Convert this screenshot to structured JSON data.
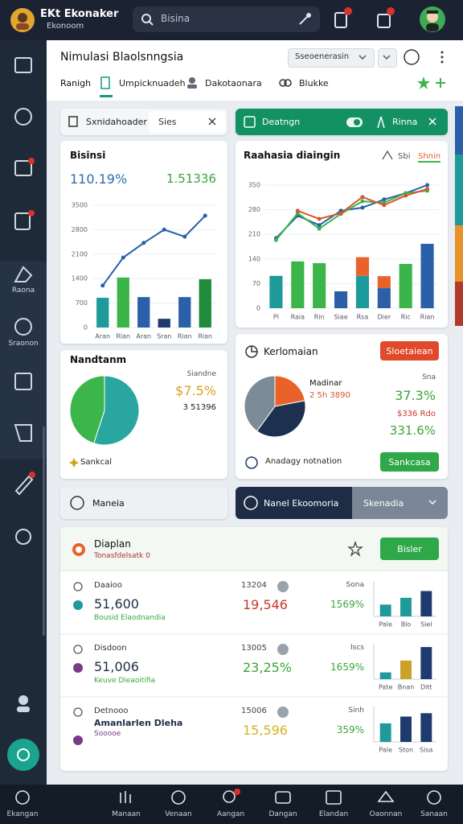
{
  "top_bar": {
    "app_title": "EKt Ekonaker",
    "app_subtitle": "Ekonoom",
    "search": "Bisina"
  },
  "sidebar": {
    "items": [
      "Raona",
      "Sraonon"
    ]
  },
  "header": {
    "title": "Nimulasi Blaolsnngsia",
    "dropdown": "Sseoenerasin",
    "tabs": [
      "Ranigh",
      "Umpicknuadeh",
      "Dakotaonara",
      "Blukke"
    ]
  },
  "filter_bar": {
    "label": "Sxnidahoader",
    "input": "Sies",
    "action": "Deatngn",
    "action_right": "Rinna"
  },
  "chart_left": {
    "type": "bar",
    "title": "Bisinsi",
    "kpi": "110.19%",
    "kpi_secondary": "1.51336",
    "categories": [
      "Aran",
      "Rlan",
      "Aran",
      "Sran",
      "Rian",
      "Rlan"
    ],
    "values": [
      850,
      1430,
      870,
      250,
      870,
      1380
    ],
    "colors": [
      "#1f9a9a",
      "#3bb54a",
      "#2b5fa8",
      "#1e3a6e",
      "#2b5fa8",
      "#1e8c3a"
    ],
    "lines": [
      {
        "color": "#2b5fa8",
        "values": [
          1200,
          2000,
          2420,
          2800,
          2600,
          3200
        ]
      }
    ],
    "ylim": [
      0,
      3500
    ],
    "yticks": [
      0,
      700,
      1400,
      2100,
      2800,
      3500
    ]
  },
  "chart_right": {
    "type": "bar",
    "title": "Raahasia diaingin",
    "legend": [
      "Sbi",
      "Shnin"
    ],
    "categories": [
      "Pl",
      "Raia",
      "Rin",
      "Siae",
      "Rsa",
      "Dier",
      "Ric",
      "Rian"
    ],
    "values": [
      92,
      133,
      128,
      48,
      92,
      57,
      126,
      183
    ],
    "colors": [
      "#1f9a9a",
      "#3bb54a",
      "#3bb54a",
      "#2b5fa8",
      "#1f9a9a",
      "#2b5fa8",
      "#3bb54a",
      "#2b5fa8"
    ],
    "top_values": [
      null,
      null,
      null,
      null,
      53,
      34,
      null,
      null
    ],
    "top_color": "#e8622a",
    "lines": [
      {
        "color": "#2b5fa8",
        "values": [
          199,
          263,
          236,
          277,
          286,
          309,
          327,
          350
        ]
      },
      {
        "color": "#3bb54a",
        "values": [
          194,
          270,
          226,
          268,
          304,
          300,
          327,
          334
        ]
      },
      {
        "color": "#d9552b",
        "values": [
          null,
          277,
          254,
          270,
          316,
          293,
          320,
          339
        ]
      }
    ],
    "ylim": [
      0,
      350
    ],
    "yticks": [
      0,
      70,
      140,
      210,
      280,
      350
    ]
  },
  "pie_left": {
    "type": "pie",
    "title": "Nandtanm",
    "label": "Siandne",
    "value_text": "$7.5%",
    "secondary": "3 51396",
    "footer": "Sankcal",
    "values": [
      55,
      45
    ],
    "colors": [
      "#2aa6a0",
      "#3cb54a"
    ]
  },
  "pie_right": {
    "type": "pie",
    "title": "Kerlomaian",
    "button": "Sloetaiean",
    "center_label": "Madinar",
    "center_value": "2 5h 3890",
    "side_label": "Sna",
    "side_value": "37.3%",
    "side_note": "$336 Rdo",
    "side_value_2": "331.6%",
    "footer": "Anadagy notnation",
    "footer_button": "Sankcasa",
    "values": [
      22,
      38,
      40
    ],
    "colors": [
      "#e8622a",
      "#1e3050",
      "#7d8b96"
    ]
  },
  "tab_row": {
    "left": "Maneia",
    "active": "Nanel Ekoomoria",
    "right": "Skenadia"
  },
  "list": {
    "title": "Diaplan",
    "subtitle": "Tonasfdelsatk 0",
    "button": "Bisler",
    "rows": [
      {
        "name": "Daaioo",
        "amount": "51,600",
        "note": "Bousid Elaodnandia",
        "mid_label": "13204",
        "mid_value": "19,546",
        "mid_color": "#c8362c",
        "right_label": "Sona",
        "right_value": "1569%",
        "chart": {
          "categories": [
            "Pale",
            "Blo",
            "Siel"
          ],
          "values": [
            35,
            55,
            75
          ],
          "colors": [
            "#1f9a9a",
            "#1f9a9a",
            "#1e3a6e"
          ],
          "ylim": [
            0,
            100
          ]
        }
      },
      {
        "name": "Disdoon",
        "amount": "51,006",
        "note": "Keuve Dieaoitifia",
        "mid_label": "13005",
        "mid_value": "23,25%",
        "mid_color": "#3aa53a",
        "right_label": "Iscs",
        "right_value": "1659%",
        "chart": {
          "categories": [
            "Pate",
            "Bnan",
            "Ditt"
          ],
          "values": [
            20,
            55,
            95
          ],
          "colors": [
            "#1f9a9a",
            "#c9a227",
            "#1e3a6e"
          ],
          "ylim": [
            0,
            100
          ]
        }
      },
      {
        "name": "Detnooo",
        "amount": "Amanlarlen Dleha",
        "note": "Sooooe",
        "mid_label": "15006",
        "mid_value": "15,596",
        "mid_color": "#d8b21e",
        "right_label": "Sinh",
        "right_value": "359%",
        "chart": {
          "categories": [
            "Pale",
            "Ston",
            "Sisa"
          ],
          "values": [
            55,
            75,
            85
          ],
          "colors": [
            "#1f9a9a",
            "#1e3a6e",
            "#1e3a6e"
          ],
          "ylim": [
            0,
            100
          ]
        }
      }
    ]
  },
  "bottom_nav": [
    "Ekangan",
    "Manaan",
    "Venaan",
    "Aangan",
    "Dangan",
    "Elandan",
    "Oaonnan",
    "Sanaan"
  ]
}
